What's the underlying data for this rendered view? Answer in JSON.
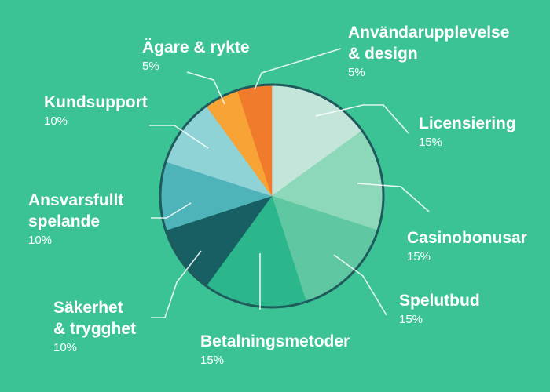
{
  "colors": {
    "background": "#3cc395",
    "pie_outline": "#1f5a5c",
    "label_text": "#ffffff"
  },
  "chart_data": {
    "type": "pie",
    "unit": "%",
    "slices": [
      {
        "label_lines": [
          "Licensiering"
        ],
        "value": 15,
        "value_label": "15%",
        "color": "#c4e6da"
      },
      {
        "label_lines": [
          "Casinobonusar"
        ],
        "value": 15,
        "value_label": "15%",
        "color": "#8dd8b9"
      },
      {
        "label_lines": [
          "Spelutbud"
        ],
        "value": 15,
        "value_label": "15%",
        "color": "#5fc8a2"
      },
      {
        "label_lines": [
          "Betalningsmetoder"
        ],
        "value": 15,
        "value_label": "15%",
        "color": "#2bb68b"
      },
      {
        "label_lines": [
          "Säkerhet",
          "& trygghet"
        ],
        "value": 10,
        "value_label": "10%",
        "color": "#185f64"
      },
      {
        "label_lines": [
          "Ansvarsfullt",
          "spelande"
        ],
        "value": 10,
        "value_label": "10%",
        "color": "#4fb4b9"
      },
      {
        "label_lines": [
          "Kundsupport"
        ],
        "value": 10,
        "value_label": "10%",
        "color": "#8fd3d7"
      },
      {
        "label_lines": [
          "Ägare & rykte"
        ],
        "value": 5,
        "value_label": "5%",
        "color": "#f7a335"
      },
      {
        "label_lines": [
          "Användarupplevelse",
          "& design"
        ],
        "value": 5,
        "value_label": "5%",
        "color": "#f07b2c"
      }
    ]
  }
}
